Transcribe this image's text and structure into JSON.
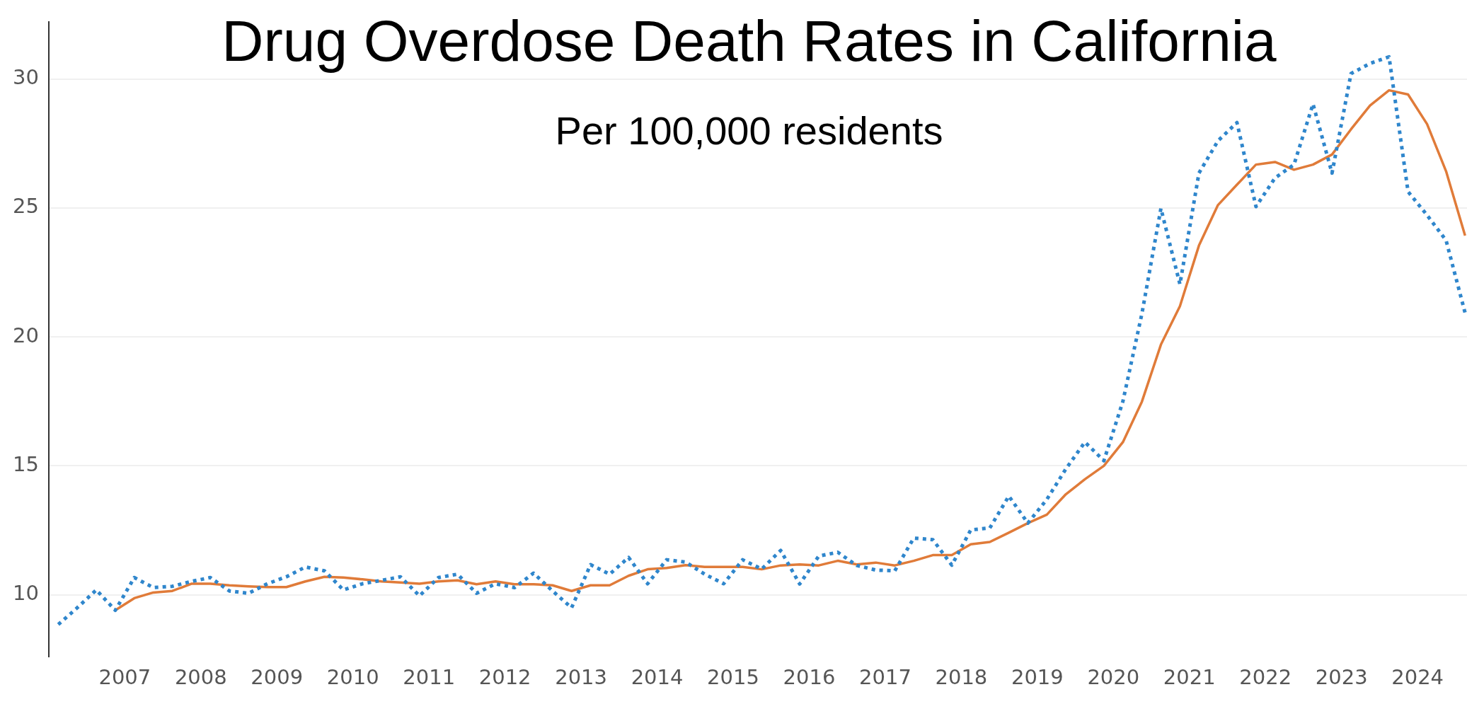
{
  "chart_data": {
    "type": "line",
    "title": "Drug Overdose Death Rates in California",
    "subtitle": "Per 100,000 residents",
    "x": [
      2006.125,
      2006.375,
      2006.625,
      2006.875,
      2007.125,
      2007.375,
      2007.625,
      2007.875,
      2008.125,
      2008.375,
      2008.625,
      2008.875,
      2009.125,
      2009.375,
      2009.625,
      2009.875,
      2010.125,
      2010.375,
      2010.625,
      2010.875,
      2011.125,
      2011.375,
      2011.625,
      2011.875,
      2012.125,
      2012.375,
      2012.625,
      2012.875,
      2013.125,
      2013.375,
      2013.625,
      2013.875,
      2014.125,
      2014.375,
      2014.625,
      2014.875,
      2015.125,
      2015.375,
      2015.625,
      2015.875,
      2016.125,
      2016.375,
      2016.625,
      2016.875,
      2017.125,
      2017.375,
      2017.625,
      2017.875,
      2018.125,
      2018.375,
      2018.625,
      2018.875,
      2019.125,
      2019.375,
      2019.625,
      2019.875,
      2020.125,
      2020.375,
      2020.625,
      2020.875,
      2021.125,
      2021.375,
      2021.625,
      2021.875,
      2022.125,
      2022.375,
      2022.625,
      2022.875,
      2023.125,
      2023.375,
      2023.625,
      2023.875,
      2024.125,
      2024.375,
      2024.625
    ],
    "series": [
      {
        "color": "#2f86cc",
        "line_style": "dotted",
        "values": [
          8.85,
          9.5,
          10.19,
          9.4,
          10.67,
          10.28,
          10.33,
          10.52,
          10.67,
          10.15,
          10.06,
          10.43,
          10.7,
          11.08,
          10.93,
          10.19,
          10.43,
          10.56,
          10.7,
          9.96,
          10.67,
          10.8,
          10.06,
          10.43,
          10.28,
          10.84,
          10.15,
          9.5,
          11.17,
          10.8,
          11.45,
          10.43,
          11.36,
          11.27,
          10.8,
          10.43,
          11.36,
          11.0,
          11.72,
          10.42,
          11.5,
          11.65,
          11.14,
          10.96,
          10.93,
          12.2,
          12.14,
          11.15,
          12.52,
          12.59,
          13.83,
          12.78,
          13.7,
          14.88,
          15.92,
          15.2,
          17.5,
          20.9,
          24.98,
          22.04,
          26.35,
          27.6,
          28.31,
          25.05,
          26.16,
          26.68,
          29.03,
          26.35,
          30.21,
          30.6,
          30.86,
          25.63,
          24.72,
          23.74,
          20.93
        ]
      },
      {
        "color": "#e07b39",
        "line_style": "solid",
        "values": [
          null,
          null,
          null,
          9.4,
          9.87,
          10.09,
          10.15,
          10.43,
          10.43,
          10.37,
          10.33,
          10.3,
          10.3,
          10.52,
          10.7,
          10.67,
          10.6,
          10.52,
          10.48,
          10.43,
          10.52,
          10.56,
          10.41,
          10.52,
          10.41,
          10.41,
          10.37,
          10.15,
          10.37,
          10.37,
          10.74,
          10.99,
          11.04,
          11.15,
          11.08,
          11.08,
          11.08,
          10.99,
          11.14,
          11.18,
          11.14,
          11.32,
          11.18,
          11.25,
          11.14,
          11.32,
          11.54,
          11.54,
          11.96,
          12.05,
          12.41,
          12.78,
          13.11,
          13.9,
          14.48,
          15.0,
          15.92,
          17.49,
          19.7,
          21.19,
          23.54,
          25.11,
          25.9,
          26.68,
          26.78,
          26.48,
          26.68,
          27.07,
          28.05,
          28.97,
          29.56,
          29.4,
          28.25,
          26.42,
          23.93
        ]
      }
    ],
    "xlim": [
      2006,
      2024.65
    ],
    "xticks": [
      2007,
      2008,
      2009,
      2010,
      2011,
      2012,
      2013,
      2014,
      2015,
      2016,
      2017,
      2018,
      2019,
      2020,
      2021,
      2022,
      2023,
      2024
    ],
    "ylim": [
      7.6,
      32.2
    ],
    "yticks": [
      10,
      15,
      20,
      25,
      30
    ],
    "grid": "y",
    "legend": false,
    "marker": "none"
  }
}
